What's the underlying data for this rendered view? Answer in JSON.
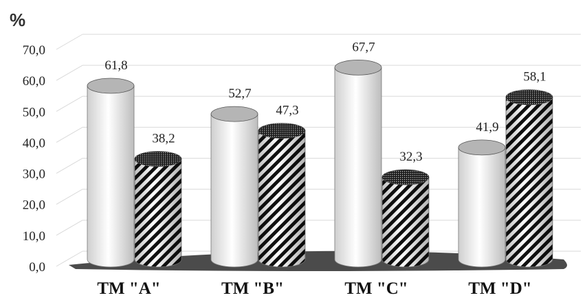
{
  "chart_data": {
    "type": "bar",
    "style": "3d-cylinder",
    "y_unit_label": "%",
    "categories": [
      "TM \"A\"",
      "TM \"B\"",
      "TM \"C\"",
      "TM \"D\""
    ],
    "series": [
      {
        "values": [
          61.8,
          52.7,
          67.7,
          41.9
        ],
        "fill": "plain-light-gray"
      },
      {
        "values": [
          38.2,
          47.3,
          32.3,
          58.1
        ],
        "fill": "diagonal-hatch-black"
      }
    ],
    "value_labels": [
      [
        "61,8",
        "52,7",
        "67,7",
        "41,9"
      ],
      [
        "38,2",
        "47,3",
        "32,3",
        "58,1"
      ]
    ],
    "y_ticks": [
      "0,0",
      "10,0",
      "20,0",
      "30,0",
      "40,0",
      "50,0",
      "60,0",
      "70,0"
    ],
    "ylim": [
      0,
      70
    ],
    "grid": true,
    "legend": "none",
    "colors": {
      "grid": "#d9d9d9",
      "plain_body": "#e6e6e6",
      "plain_cap": "#b5b5b5",
      "hatch_ink": "#111111",
      "floor": "#2b2b2b"
    }
  }
}
